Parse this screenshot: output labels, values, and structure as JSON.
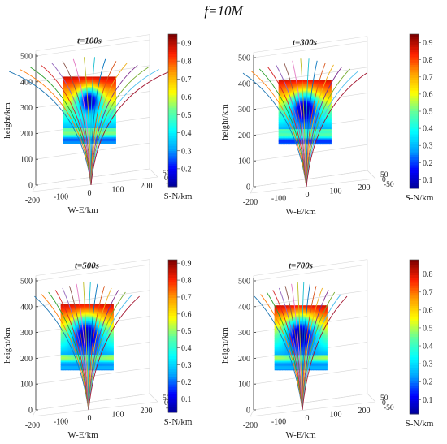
{
  "figure": {
    "title": "f=10M"
  },
  "colormap_stops": [
    "#00008f",
    "#0000ff",
    "#00a0ff",
    "#00ffff",
    "#60ff9f",
    "#ffff00",
    "#ffa000",
    "#ff2000",
    "#800000"
  ],
  "ray_colors": [
    "#1f77b4",
    "#ff7f0e",
    "#2ca02c",
    "#d62728",
    "#9467bd",
    "#8c564b",
    "#e377c2",
    "#bcbd22",
    "#17becf",
    "#0072bd",
    "#d95319",
    "#edb120",
    "#7e2f8e",
    "#77ac30",
    "#4dbeee",
    "#a2142f"
  ],
  "chart_data": [
    {
      "type": "heatmap",
      "title": "t=100s",
      "xlabel": "W-E/km",
      "ylabel": "height/km",
      "zlabel": "S-N/km",
      "x_ticks": [
        "-200",
        "-100",
        "0",
        "100",
        "200"
      ],
      "z_ticks": [
        "0",
        "100",
        "200",
        "300",
        "400",
        "500"
      ],
      "y_ticks": [
        "50",
        "0",
        "-50"
      ],
      "colorbar_ticks": [
        "0.2",
        "0.3",
        "0.4",
        "0.5",
        "0.6",
        "0.7",
        "0.8",
        "0.9"
      ],
      "colorbar_range": [
        0.1,
        0.95
      ],
      "slice_height_range": [
        160,
        420
      ],
      "hole_center_height": 325,
      "hole_radius_km": 40,
      "ray_count": 16,
      "ray_spread_km": 260
    },
    {
      "type": "heatmap",
      "title": "t=300s",
      "xlabel": "W-E/km",
      "ylabel": "height/km",
      "zlabel": "S-N/km",
      "x_ticks": [
        "-200",
        "-100",
        "0",
        "100",
        "200"
      ],
      "z_ticks": [
        "0",
        "100",
        "200",
        "300",
        "400",
        "500"
      ],
      "y_ticks": [
        "50",
        "0",
        "-50"
      ],
      "colorbar_ticks": [
        "0.1",
        "0.2",
        "0.3",
        "0.4",
        "0.5",
        "0.6",
        "0.7",
        "0.8",
        "0.9"
      ],
      "colorbar_range": [
        0.05,
        0.95
      ],
      "slice_height_range": [
        165,
        415
      ],
      "hole_center_height": 300,
      "hole_radius_km": 50,
      "ray_count": 16,
      "ray_spread_km": 200
    },
    {
      "type": "heatmap",
      "title": "t=500s",
      "xlabel": "W-E/km",
      "ylabel": "height/km",
      "zlabel": "S-N/km",
      "x_ticks": [
        "-200",
        "-100",
        "0",
        "100",
        "200"
      ],
      "z_ticks": [
        "0",
        "100",
        "200",
        "300",
        "400",
        "500"
      ],
      "y_ticks": [
        "50",
        "0",
        "-50"
      ],
      "colorbar_ticks": [
        "0.1",
        "0.2",
        "0.3",
        "0.4",
        "0.5",
        "0.6",
        "0.7",
        "0.8",
        "0.9"
      ],
      "colorbar_range": [
        0.02,
        0.92
      ],
      "slice_height_range": [
        155,
        410
      ],
      "hole_center_height": 290,
      "hole_radius_km": 55,
      "ray_count": 16,
      "ray_spread_km": 170
    },
    {
      "type": "heatmap",
      "title": "t=700s",
      "xlabel": "W-E/km",
      "ylabel": "height/km",
      "zlabel": "S-N/km",
      "x_ticks": [
        "-200",
        "-100",
        "0",
        "100",
        "200"
      ],
      "z_ticks": [
        "0",
        "100",
        "200",
        "300",
        "400",
        "500"
      ],
      "y_ticks": [
        "50",
        "0",
        "-50"
      ],
      "colorbar_ticks": [
        "0.1",
        "0.2",
        "0.3",
        "0.4",
        "0.5",
        "0.6",
        "0.7",
        "0.8"
      ],
      "colorbar_range": [
        0.02,
        0.88
      ],
      "slice_height_range": [
        155,
        405
      ],
      "hole_center_height": 290,
      "hole_radius_km": 55,
      "ray_count": 16,
      "ray_spread_km": 150
    }
  ]
}
